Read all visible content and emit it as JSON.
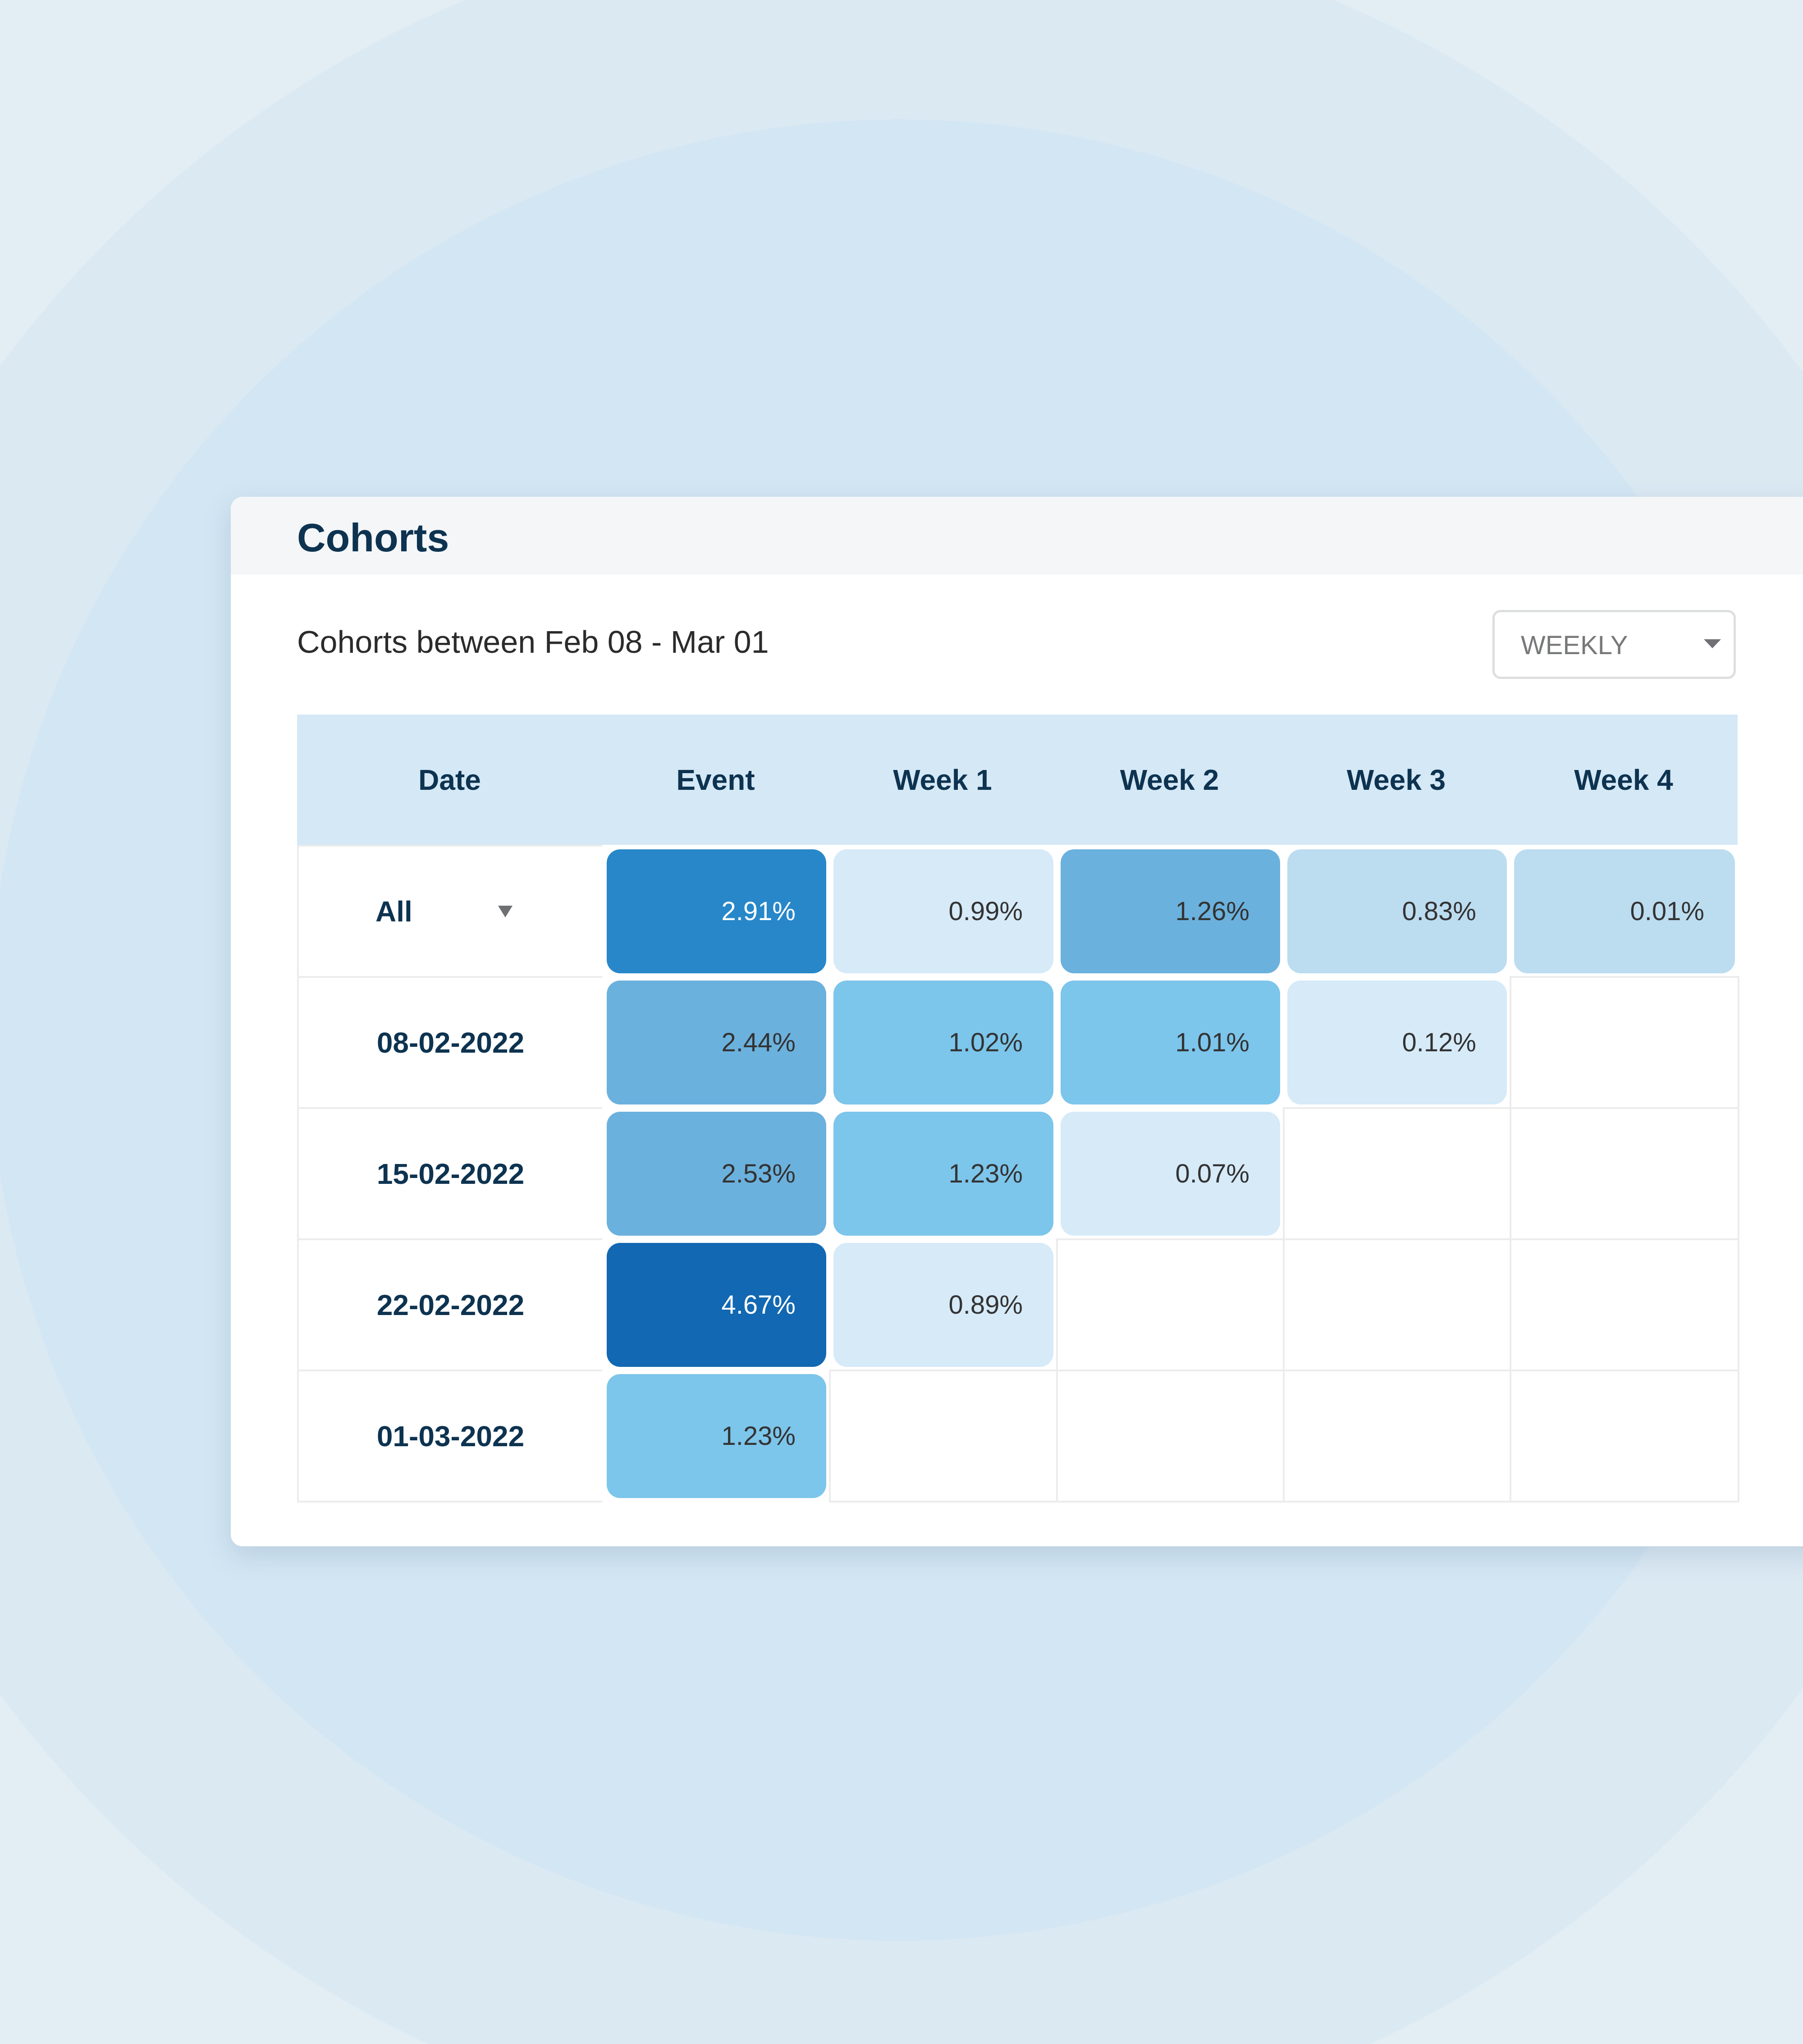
{
  "card": {
    "title": "Cohorts",
    "subtitle": "Cohorts between Feb 08 - Mar 01"
  },
  "dropdown": {
    "value": "WEEKLY",
    "icon": "caret-down-icon"
  },
  "chart_data": {
    "type": "heatmap",
    "columns": [
      "Date",
      "Event",
      "Week 1",
      "Week 2",
      "Week 3",
      "Week 4"
    ],
    "rows": [
      {
        "label": "All",
        "has_dropdown": true,
        "values": [
          "2.91%",
          "0.99%",
          "1.26%",
          "0.83%",
          "0.01%"
        ],
        "colors": [
          "#2787c9",
          "#d6eaf8",
          "#6bb1dd",
          "#bcdcf0",
          "#bcdcf0"
        ]
      },
      {
        "label": "08-02-2022",
        "values": [
          "2.44%",
          "1.02%",
          "1.01%",
          "0.12%"
        ],
        "colors": [
          "#6bb1dd",
          "#7cc5eb",
          "#7cc5eb",
          "#d6eaf8"
        ]
      },
      {
        "label": "15-02-2022",
        "values": [
          "2.53%",
          "1.23%",
          "0.07%"
        ],
        "colors": [
          "#6bb1dd",
          "#7cc5eb",
          "#d6eaf8"
        ]
      },
      {
        "label": "22-02-2022",
        "values": [
          "4.67%",
          "0.89%"
        ],
        "colors": [
          "#1268b2",
          "#d6eaf8"
        ]
      },
      {
        "label": "01-03-2022",
        "values": [
          "1.23%"
        ],
        "colors": [
          "#7cc5eb"
        ]
      }
    ],
    "dark_text_on_light": "#333333",
    "light_text_on_dark": "#ffffff"
  }
}
